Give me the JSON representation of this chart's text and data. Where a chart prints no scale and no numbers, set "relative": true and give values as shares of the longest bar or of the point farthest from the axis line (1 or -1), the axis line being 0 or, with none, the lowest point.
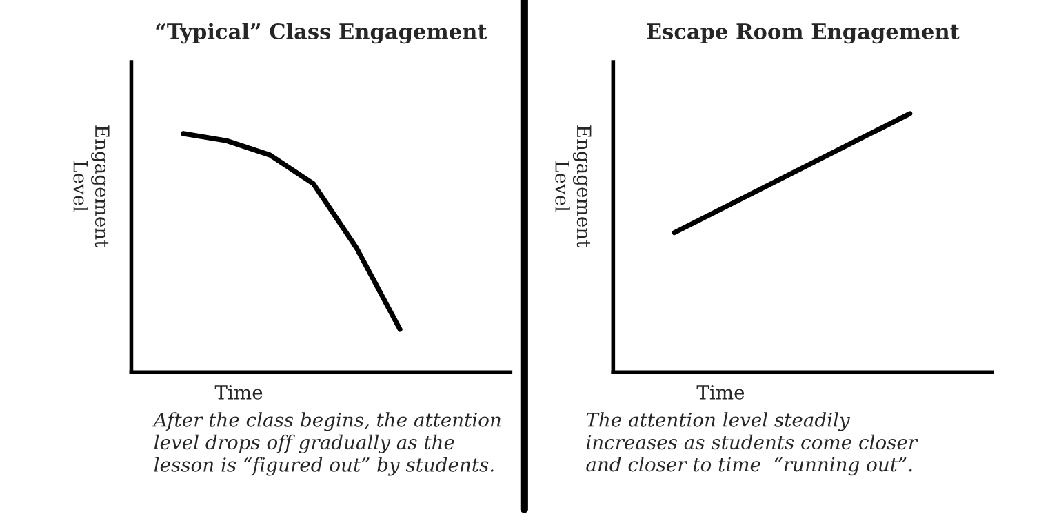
{
  "chart_data": [
    {
      "type": "line",
      "title": "“Typical” Class Engagement",
      "xlabel": "Time",
      "ylabel": "Engagement\nLevel",
      "relative": true,
      "categories": [
        null,
        null,
        null,
        null,
        null,
        null
      ],
      "series": [
        {
          "color": "#000000",
          "values": [
            1,
            0.97,
            0.91,
            0.79,
            0.52,
            0.18
          ]
        }
      ],
      "annotations": [
        "After the class begins, the attention\nlevel drops off gradually as the\nlesson is “figured out” by students."
      ]
    },
    {
      "type": "line",
      "title": "Escape Room Engagement",
      "xlabel": "Time",
      "ylabel": "Engagement\nLevel",
      "relative": true,
      "categories": [
        null,
        null
      ],
      "series": [
        {
          "color": "#000000",
          "values": [
            0.54,
            1
          ]
        }
      ],
      "annotations": [
        "The attention level steadily\nincreases as students come closer\nand closer to time  “running out”."
      ]
    }
  ]
}
